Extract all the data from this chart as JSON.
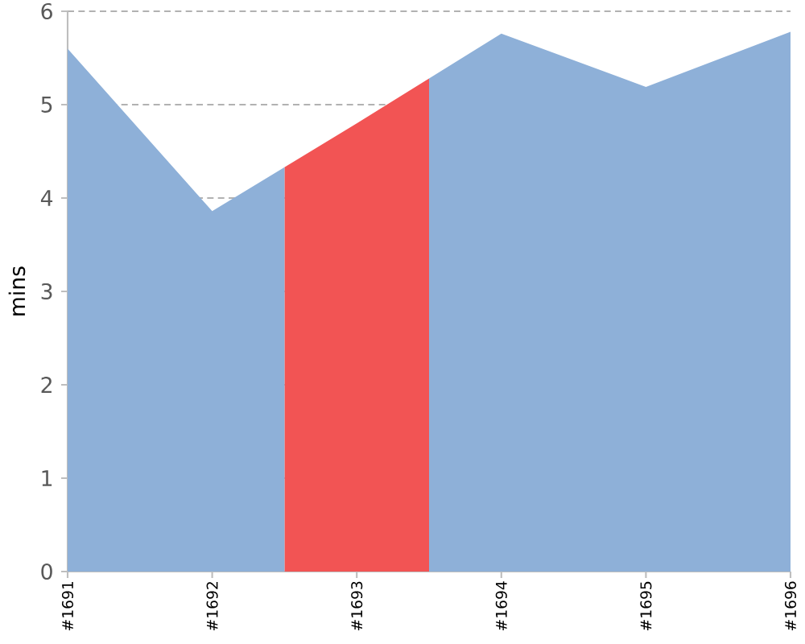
{
  "chart_data": {
    "type": "area",
    "ylabel": "mins",
    "categories": [
      "#1691",
      "#1692",
      "#1693",
      "#1694",
      "#1695",
      "#1696"
    ],
    "values": [
      5.6,
      3.86,
      4.8,
      5.76,
      5.19,
      5.78
    ],
    "color": "#8eb0d8",
    "colors": [
      "#8eb0d8",
      "#8eb0d8",
      "#f25454",
      "#8eb0d8",
      "#8eb0d8",
      "#8eb0d8"
    ],
    "ylim": [
      0,
      6
    ],
    "yticks": [
      0,
      1,
      2,
      3,
      4,
      5,
      6
    ],
    "grid": "y"
  }
}
